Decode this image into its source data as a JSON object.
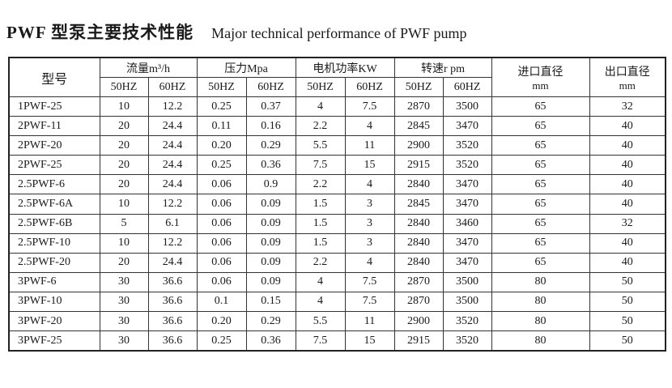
{
  "title": {
    "cn": "PWF 型泵主要技术性能",
    "en": "Major technical performance of PWF pump"
  },
  "headers": {
    "model": "型号",
    "flow": "流量m³/h",
    "pressure": "压力Mpa",
    "power": "电机功率KW",
    "speed": "转速r pm",
    "inlet": "进口直径",
    "inlet_unit": "mm",
    "outlet": "出口直径",
    "outlet_unit": "mm",
    "hz50": "50HZ",
    "hz60": "60HZ"
  },
  "rows": [
    [
      "1PWF-25",
      "10",
      "12.2",
      "0.25",
      "0.37",
      "4",
      "7.5",
      "2870",
      "3500",
      "65",
      "32"
    ],
    [
      "2PWF-11",
      "20",
      "24.4",
      "0.11",
      "0.16",
      "2.2",
      "4",
      "2845",
      "3470",
      "65",
      "40"
    ],
    [
      "2PWF-20",
      "20",
      "24.4",
      "0.20",
      "0.29",
      "5.5",
      "11",
      "2900",
      "3520",
      "65",
      "40"
    ],
    [
      "2PWF-25",
      "20",
      "24.4",
      "0.25",
      "0.36",
      "7.5",
      "15",
      "2915",
      "3520",
      "65",
      "40"
    ],
    [
      "2.5PWF-6",
      "20",
      "24.4",
      "0.06",
      "0.9",
      "2.2",
      "4",
      "2840",
      "3470",
      "65",
      "40"
    ],
    [
      "2.5PWF-6A",
      "10",
      "12.2",
      "0.06",
      "0.09",
      "1.5",
      "3",
      "2845",
      "3470",
      "65",
      "40"
    ],
    [
      "2.5PWF-6B",
      "5",
      "6.1",
      "0.06",
      "0.09",
      "1.5",
      "3",
      "2840",
      "3460",
      "65",
      "32"
    ],
    [
      "2.5PWF-10",
      "10",
      "12.2",
      "0.06",
      "0.09",
      "1.5",
      "3",
      "2840",
      "3470",
      "65",
      "40"
    ],
    [
      "2.5PWF-20",
      "20",
      "24.4",
      "0.06",
      "0.09",
      "2.2",
      "4",
      "2840",
      "3470",
      "65",
      "40"
    ],
    [
      "3PWF-6",
      "30",
      "36.6",
      "0.06",
      "0.09",
      "4",
      "7.5",
      "2870",
      "3500",
      "80",
      "50"
    ],
    [
      "3PWF-10",
      "30",
      "36.6",
      "0.1",
      "0.15",
      "4",
      "7.5",
      "2870",
      "3500",
      "80",
      "50"
    ],
    [
      "3PWF-20",
      "30",
      "36.6",
      "0.20",
      "0.29",
      "5.5",
      "11",
      "2900",
      "3520",
      "80",
      "50"
    ],
    [
      "3PWF-25",
      "30",
      "36.6",
      "0.25",
      "0.36",
      "7.5",
      "15",
      "2915",
      "3520",
      "80",
      "50"
    ]
  ]
}
